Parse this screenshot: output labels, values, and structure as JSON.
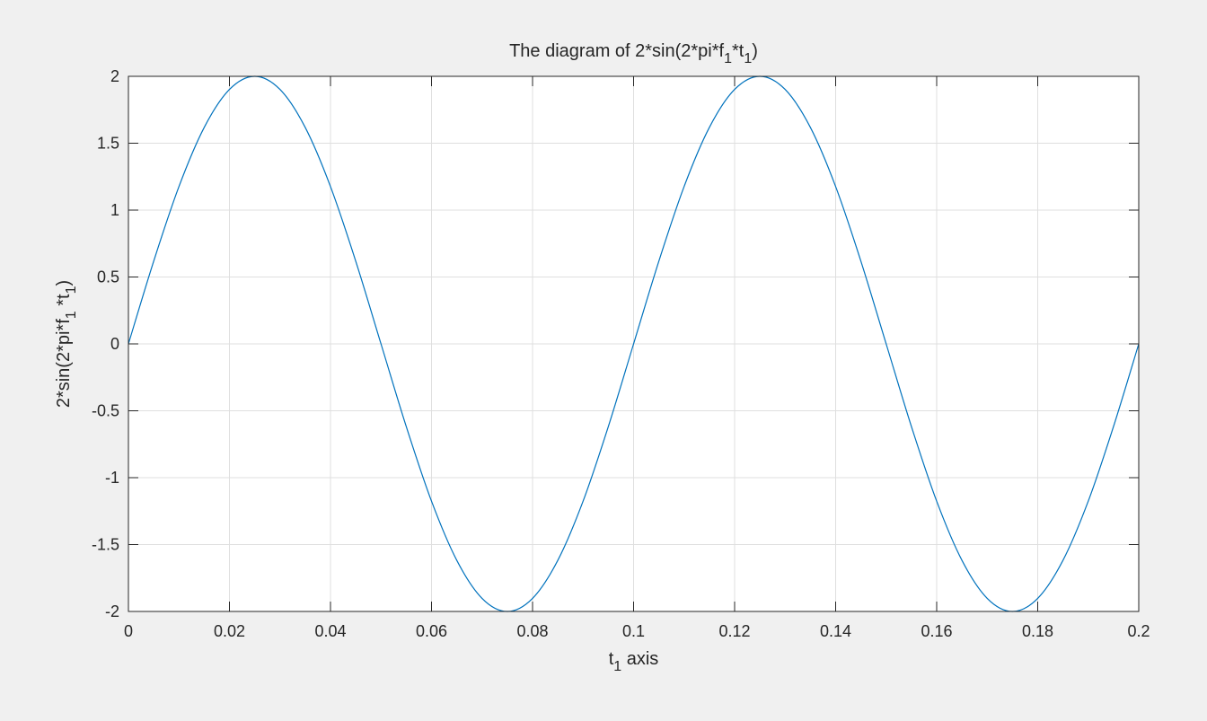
{
  "chart_data": {
    "type": "line",
    "title": {
      "parts": [
        {
          "t": "The diagram of 2*sin(2*pi*f"
        },
        {
          "t": "1",
          "sub": true
        },
        {
          "t": "*t"
        },
        {
          "t": "1",
          "sub": true
        },
        {
          "t": ")"
        }
      ]
    },
    "xlabel": {
      "parts": [
        {
          "t": "t"
        },
        {
          "t": "1",
          "sub": true
        },
        {
          "t": " axis"
        }
      ]
    },
    "ylabel": {
      "parts": [
        {
          "t": "2*sin(2*pi*f"
        },
        {
          "t": "1",
          "sub": true
        },
        {
          "t": " *t"
        },
        {
          "t": "1",
          "sub": true
        },
        {
          "t": ")"
        }
      ]
    },
    "xlim": [
      0,
      0.2
    ],
    "ylim": [
      -2,
      2
    ],
    "xticks": [
      0,
      0.02,
      0.04,
      0.06,
      0.08,
      0.1,
      0.12,
      0.14,
      0.16,
      0.18,
      0.2
    ],
    "xtick_labels": [
      "0",
      "0.02",
      "0.04",
      "0.06",
      "0.08",
      "0.1",
      "0.12",
      "0.14",
      "0.16",
      "0.18",
      "0.2"
    ],
    "yticks": [
      -2,
      -1.5,
      -1,
      -0.5,
      0,
      0.5,
      1,
      1.5,
      2
    ],
    "ytick_labels": [
      "-2",
      "-1.5",
      "-1",
      "-0.5",
      "0",
      "0.5",
      "1",
      "1.5",
      "2"
    ],
    "grid": true,
    "colors": {
      "line": "#0072bd",
      "grid": "#dfdfdf",
      "axis": "#262626",
      "background": "#ffffff",
      "figure": "#f0f0f0"
    },
    "series": [
      {
        "x": [
          0,
          0.005,
          0.01,
          0.015,
          0.02,
          0.025,
          0.03,
          0.035,
          0.04,
          0.045,
          0.05,
          0.055,
          0.06,
          0.065,
          0.07,
          0.075,
          0.08,
          0.085,
          0.09,
          0.095,
          0.1,
          0.105,
          0.11,
          0.115,
          0.12,
          0.125,
          0.13,
          0.135,
          0.14,
          0.145,
          0.15,
          0.155,
          0.16,
          0.165,
          0.17,
          0.175,
          0.18,
          0.185,
          0.19,
          0.195,
          0.2
        ],
        "y": [
          0,
          0.618,
          1.176,
          1.618,
          1.902,
          2,
          1.902,
          1.618,
          1.176,
          0.618,
          0,
          -0.618,
          -1.176,
          -1.618,
          -1.902,
          -2,
          -1.902,
          -1.618,
          -1.176,
          -0.618,
          0,
          0.618,
          1.176,
          1.618,
          1.902,
          2,
          1.902,
          1.618,
          1.176,
          0.618,
          0,
          -0.618,
          -1.176,
          -1.618,
          -1.902,
          -2,
          -1.902,
          -1.618,
          -1.176,
          -0.618,
          0
        ]
      }
    ]
  }
}
